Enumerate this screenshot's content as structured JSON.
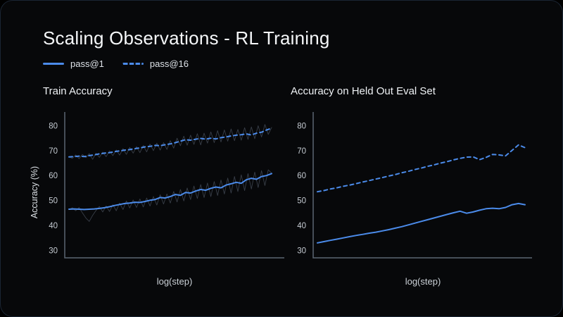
{
  "slide": {
    "title": "Scaling Observations - RL Training",
    "legend": [
      {
        "label": "pass@1",
        "style": "solid"
      },
      {
        "label": "pass@16",
        "style": "dashed"
      }
    ],
    "colors": {
      "accent_blue": "#4b8bea",
      "raw_line": "#7b8aa0",
      "axis": "#5b6672",
      "tick_text": "#c5cbd2",
      "card_background": "#07080a"
    }
  },
  "chart_data": [
    {
      "type": "line",
      "title": "Train Accuracy",
      "xlabel": "log(step)",
      "ylabel": "Accuracy (%)",
      "x_range_normalized": [
        0,
        1
      ],
      "ylim": [
        27,
        85.5
      ],
      "yticks": [
        30,
        40,
        50,
        60,
        70,
        80
      ],
      "grid": false,
      "series": [
        {
          "name": "pass@16 raw",
          "style": "raw",
          "values": [
            67.6,
            66.9,
            68.3,
            66.8,
            68.5,
            67.2,
            68.8,
            66.5,
            69.0,
            67.3,
            69.4,
            67.6,
            69.9,
            68.0,
            70.3,
            68.2,
            70.8,
            68.5,
            71.3,
            69.0,
            71.6,
            69.2,
            72.1,
            69.5,
            72.6,
            70.0,
            73.0,
            70.2,
            73.2,
            70.5,
            74.0,
            71.0,
            75.0,
            72.0,
            75.8,
            72.2,
            76.2,
            72.5,
            76.8,
            72.3,
            77.0,
            73.0,
            77.5,
            73.2,
            78.0,
            73.5,
            78.3,
            73.8,
            78.7,
            74.0,
            78.5,
            74.2,
            79.2,
            74.5,
            79.5,
            74.8,
            80.0,
            75.5,
            80.5,
            76.5,
            79.3
          ]
        },
        {
          "name": "pass@1 raw",
          "style": "raw",
          "values": [
            46.3,
            47.1,
            45.9,
            47.2,
            45.0,
            43.0,
            41.6,
            44.0,
            46.0,
            47.6,
            45.4,
            47.8,
            45.6,
            48.3,
            45.9,
            49.0,
            46.4,
            49.8,
            47.0,
            50.2,
            47.2,
            50.6,
            47.4,
            51.0,
            47.8,
            51.6,
            48.2,
            52.3,
            48.6,
            52.6,
            49.0,
            53.6,
            49.4,
            54.4,
            49.8,
            55.0,
            50.4,
            55.8,
            50.8,
            56.4,
            51.2,
            57.0,
            51.6,
            57.6,
            52.0,
            58.2,
            52.6,
            59.0,
            53.0,
            59.6,
            53.6,
            60.3,
            54.0,
            60.8,
            54.6,
            61.4,
            55.2,
            62.0,
            56.0,
            62.3,
            60.9
          ]
        },
        {
          "name": "pass@16",
          "style": "dashed",
          "values": [
            67.5,
            67.6,
            67.8,
            67.6,
            68.0,
            68.3,
            68.7,
            69.0,
            69.2,
            69.6,
            69.9,
            70.2,
            70.4,
            70.8,
            71.1,
            71.5,
            71.7,
            72.1,
            72.0,
            72.4,
            72.7,
            73.2,
            73.8,
            74.4,
            74.2,
            74.6,
            74.9,
            74.6,
            75.0,
            74.7,
            75.2,
            75.5,
            75.9,
            76.2,
            76.4,
            76.7,
            76.3,
            77.0,
            77.4,
            78.3,
            79.0
          ]
        },
        {
          "name": "pass@1",
          "style": "solid",
          "values": [
            46.5,
            46.6,
            46.5,
            46.4,
            46.5,
            46.6,
            46.8,
            47.1,
            47.5,
            48.0,
            48.4,
            48.8,
            49.0,
            49.3,
            49.2,
            49.6,
            50.1,
            50.4,
            51.2,
            51.0,
            51.6,
            52.4,
            52.1,
            53.2,
            53.0,
            53.8,
            54.4,
            54.1,
            54.9,
            55.4,
            55.1,
            56.2,
            56.7,
            57.3,
            56.9,
            58.3,
            58.9,
            58.5,
            59.6,
            60.0,
            60.8
          ]
        }
      ]
    },
    {
      "type": "line",
      "title": "Accuracy on Held Out Eval Set",
      "xlabel": "log(step)",
      "ylabel": "",
      "x_range_normalized": [
        0,
        1
      ],
      "ylim": [
        27,
        85.5
      ],
      "yticks": [
        30,
        40,
        50,
        60,
        70,
        80
      ],
      "grid": false,
      "series": [
        {
          "name": "pass@16",
          "style": "dashed",
          "values": [
            53.5,
            54.0,
            54.6,
            55.1,
            55.7,
            56.2,
            56.8,
            57.4,
            58.0,
            58.6,
            59.2,
            59.8,
            60.4,
            61.1,
            61.7,
            62.4,
            63.0,
            63.7,
            64.3,
            65.0,
            65.6,
            66.3,
            66.9,
            67.4,
            67.5,
            66.4,
            67.3,
            68.5,
            68.3,
            67.9,
            70.1,
            72.3,
            71.2
          ]
        },
        {
          "name": "pass@1",
          "style": "solid",
          "values": [
            33.0,
            33.5,
            34.0,
            34.5,
            35.0,
            35.5,
            36.0,
            36.4,
            36.9,
            37.3,
            37.8,
            38.3,
            38.9,
            39.5,
            40.2,
            40.9,
            41.6,
            42.3,
            43.0,
            43.7,
            44.4,
            45.1,
            45.7,
            44.9,
            45.4,
            46.1,
            46.7,
            46.9,
            46.7,
            47.2,
            48.3,
            48.8,
            48.3
          ]
        }
      ]
    }
  ]
}
